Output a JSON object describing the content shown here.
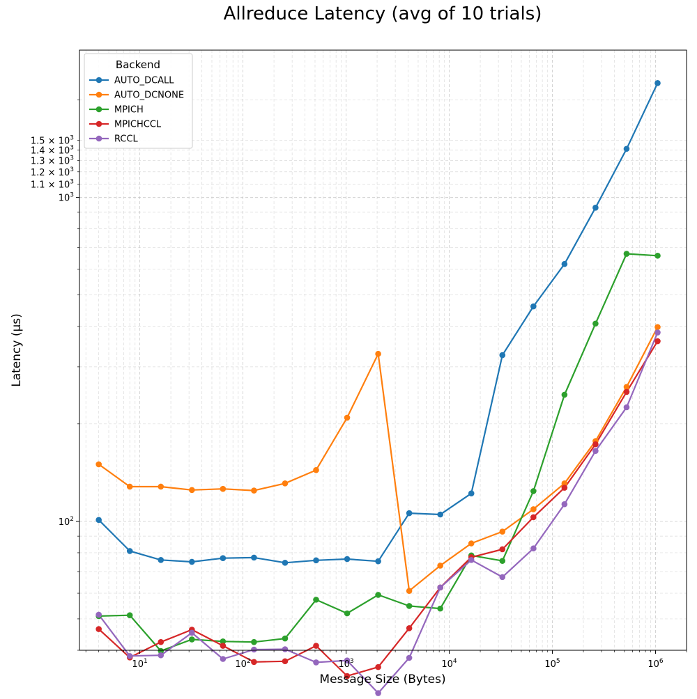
{
  "chart_data": {
    "type": "line",
    "title": "Allreduce Latency (avg of 10 trials)",
    "xlabel": "Message Size (Bytes)",
    "ylabel": "Latency (μs)",
    "xscale": "log",
    "yscale": "log",
    "xlim": [
      2.6,
      2000000
    ],
    "ylim": [
      40,
      2850
    ],
    "grid": "both, dashed",
    "legend": {
      "title": "Backend",
      "placement": "top-left"
    },
    "x_ticks": [
      {
        "value": 10,
        "base": "10",
        "exp": "1"
      },
      {
        "value": 100,
        "base": "10",
        "exp": "2"
      },
      {
        "value": 1000,
        "base": "10",
        "exp": "3"
      },
      {
        "value": 10000,
        "base": "10",
        "exp": "4"
      },
      {
        "value": 100000,
        "base": "10",
        "exp": "5"
      },
      {
        "value": 1000000,
        "base": "10",
        "exp": "6"
      }
    ],
    "y_ticks": [
      {
        "value": 100,
        "mant": "",
        "base": "10",
        "exp": "2"
      },
      {
        "value": 1000,
        "mant": "",
        "base": "10",
        "exp": "3"
      },
      {
        "value": 1100,
        "mant": "1.1 × ",
        "base": "10",
        "exp": "3"
      },
      {
        "value": 1200,
        "mant": "1.2 × ",
        "base": "10",
        "exp": "3"
      },
      {
        "value": 1300,
        "mant": "1.3 × ",
        "base": "10",
        "exp": "3"
      },
      {
        "value": 1400,
        "mant": "1.4 × ",
        "base": "10",
        "exp": "3"
      },
      {
        "value": 1500,
        "mant": "1.5 × ",
        "base": "10",
        "exp": "3"
      }
    ],
    "x": [
      4,
      8,
      16,
      32,
      64,
      128,
      256,
      512,
      1024,
      2048,
      4096,
      8192,
      16384,
      32768,
      65536,
      131072,
      262144,
      524288,
      1048576
    ],
    "series": [
      {
        "name": "AUTO_DCALL",
        "color": "#1f77b4",
        "values": [
          101,
          81,
          76,
          75,
          77,
          77.3,
          74.5,
          75.8,
          76.5,
          75.3,
          106,
          105,
          122,
          326,
          461,
          623,
          930,
          1413,
          2255
        ]
      },
      {
        "name": "AUTO_DCNONE",
        "color": "#ff7f0e",
        "values": [
          150,
          128,
          128,
          125,
          126,
          124.5,
          131,
          144,
          209,
          329,
          61,
          73,
          85.5,
          93,
          109,
          131,
          177,
          260,
          398
        ]
      },
      {
        "name": "MPICH",
        "color": "#2ca02c",
        "values": [
          51,
          51.3,
          39.8,
          43.2,
          42.6,
          42.4,
          43.5,
          57.3,
          52,
          59.3,
          54.8,
          53.8,
          78.5,
          75.5,
          124,
          246,
          408,
          670,
          661
        ]
      },
      {
        "name": "MPICHCCL",
        "color": "#d62728",
        "values": [
          46.5,
          38,
          42.4,
          46.3,
          41.3,
          36.8,
          37,
          41.3,
          33.3,
          35.5,
          46.8,
          62.5,
          77.5,
          82,
          103,
          127,
          173,
          251,
          360
        ]
      },
      {
        "name": "RCCL",
        "color": "#9467bd",
        "values": [
          51.5,
          38.4,
          38.6,
          45.3,
          37.6,
          40.2,
          40.3,
          36.7,
          37.2,
          29.5,
          37.9,
          62.5,
          76,
          67.3,
          82.5,
          113,
          165,
          225,
          383
        ]
      }
    ]
  }
}
